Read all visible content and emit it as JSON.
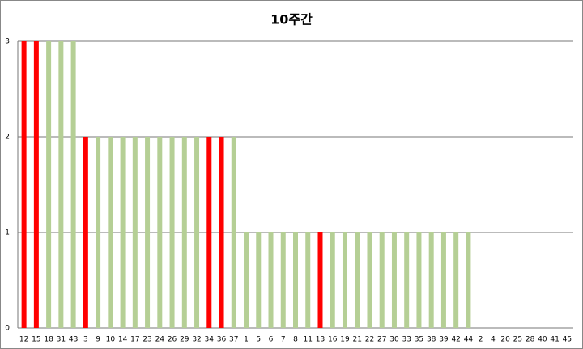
{
  "chart_data": {
    "type": "bar",
    "title": "10주간",
    "categories": [
      "12",
      "15",
      "18",
      "31",
      "43",
      "3",
      "9",
      "10",
      "14",
      "17",
      "23",
      "24",
      "26",
      "29",
      "32",
      "34",
      "36",
      "37",
      "1",
      "5",
      "6",
      "7",
      "8",
      "11",
      "13",
      "16",
      "19",
      "21",
      "22",
      "27",
      "30",
      "33",
      "35",
      "38",
      "39",
      "42",
      "44",
      "2",
      "4",
      "20",
      "25",
      "28",
      "40",
      "41",
      "45"
    ],
    "values": [
      3,
      3,
      3,
      3,
      3,
      2,
      2,
      2,
      2,
      2,
      2,
      2,
      2,
      2,
      2,
      2,
      2,
      2,
      1,
      1,
      1,
      1,
      1,
      1,
      1,
      1,
      1,
      1,
      1,
      1,
      1,
      1,
      1,
      1,
      1,
      1,
      1,
      0,
      0,
      0,
      0,
      0,
      0,
      0,
      0
    ],
    "colors": [
      "#ff0000",
      "#ff0000",
      "#b5cf95",
      "#b5cf95",
      "#b5cf95",
      "#ff0000",
      "#b5cf95",
      "#b5cf95",
      "#b5cf95",
      "#b5cf95",
      "#b5cf95",
      "#b5cf95",
      "#b5cf95",
      "#b5cf95",
      "#b5cf95",
      "#ff0000",
      "#ff0000",
      "#b5cf95",
      "#b5cf95",
      "#b5cf95",
      "#b5cf95",
      "#b5cf95",
      "#b5cf95",
      "#b5cf95",
      "#ff0000",
      "#b5cf95",
      "#b5cf95",
      "#b5cf95",
      "#b5cf95",
      "#b5cf95",
      "#b5cf95",
      "#b5cf95",
      "#b5cf95",
      "#b5cf95",
      "#b5cf95",
      "#b5cf95",
      "#b5cf95",
      "#b5cf95",
      "#b5cf95",
      "#b5cf95",
      "#b5cf95",
      "#b5cf95",
      "#b5cf95",
      "#b5cf95",
      "#b5cf95"
    ],
    "ylim": [
      0,
      3
    ],
    "yticks": [
      0,
      1,
      2,
      3
    ],
    "grid": true
  }
}
